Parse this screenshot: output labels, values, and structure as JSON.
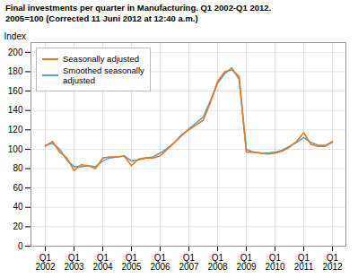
{
  "chart_data": {
    "type": "line",
    "title": "Final investments per quarter in Manufacturing. Q1 2002-Q1 2012.",
    "subtitle": "2005=100 (Corrected 11 Juni 2012 at 12:40 a.m.)",
    "ylabel": "Index",
    "categories": [
      "Q1\n2002",
      null,
      null,
      null,
      "Q1\n2003",
      null,
      null,
      null,
      "Q1\n2004",
      null,
      null,
      null,
      "Q1\n2005",
      null,
      null,
      null,
      "Q1\n2006",
      null,
      null,
      null,
      "Q1\n2007",
      null,
      null,
      null,
      "Q1\n2008",
      null,
      null,
      null,
      "Q1\n2009",
      null,
      null,
      null,
      "Q1\n2010",
      null,
      null,
      null,
      "Q1\n2011",
      null,
      null,
      null,
      "Q1\n2012"
    ],
    "series": [
      {
        "name": "Seasonally adjusted",
        "color": "#E8771E",
        "values": [
          103,
          108,
          97,
          91,
          78,
          84,
          83,
          80,
          91,
          92,
          92,
          93,
          83,
          90,
          91,
          91,
          93,
          100,
          107,
          115,
          120,
          125,
          130,
          148,
          170,
          180,
          182,
          175,
          97,
          97,
          96,
          95,
          96,
          98,
          102,
          108,
          117,
          105,
          103,
          103,
          108
        ]
      },
      {
        "name": "Smoothed seasonally\nadjusted",
        "color": "#5BA3C4",
        "values": [
          104,
          106,
          100,
          89,
          82,
          82,
          83,
          82,
          88,
          91,
          92,
          93,
          88,
          89,
          91,
          92,
          96,
          101,
          107,
          114,
          121,
          127,
          133,
          150,
          168,
          178,
          184,
          172,
          100,
          97,
          96,
          96,
          97,
          99,
          103,
          107,
          112,
          107,
          104,
          104,
          107
        ]
      }
    ],
    "ylim": [
      0,
      210
    ],
    "yticks": [
      0,
      20,
      40,
      60,
      80,
      100,
      120,
      140,
      160,
      180,
      200
    ],
    "grid": true,
    "legend": "upper left"
  }
}
